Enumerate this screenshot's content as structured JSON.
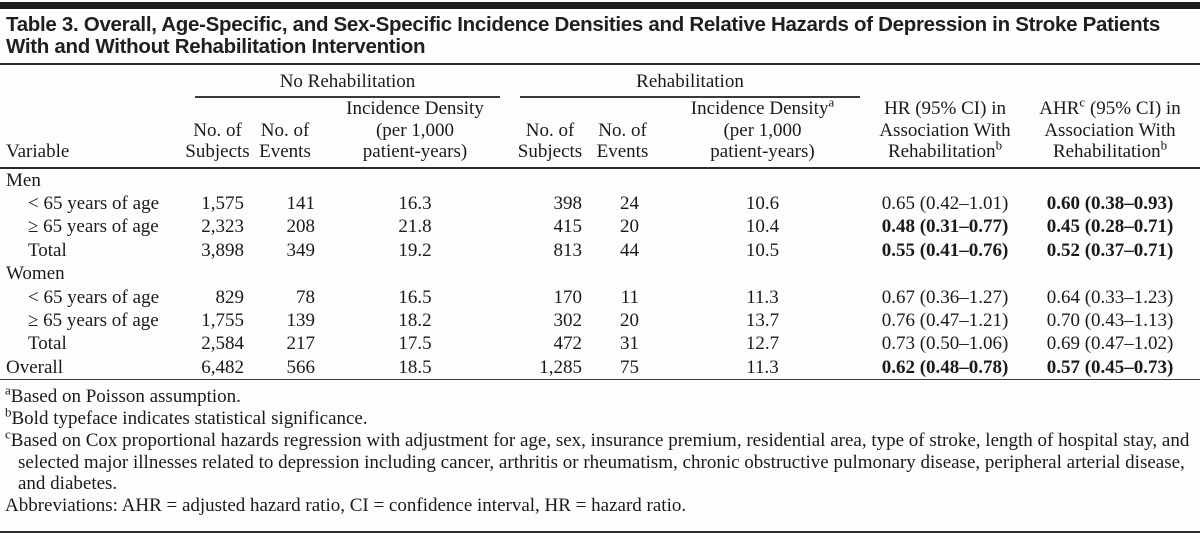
{
  "page": {
    "title": "Table 3. Overall, Age-Specific, and Sex-Specific Incidence Densities and Relative Hazards of Depression in Stroke Patients With and Without Rehabilitation Intervention"
  },
  "colors": {
    "top_bar": "#1c1c1c",
    "text": "#1a1a1a",
    "rule": "#2b2b2b",
    "background": "#fdfdfc"
  },
  "table": {
    "group_headers": [
      {
        "label": "No Rehabilitation",
        "span": 3
      },
      {
        "label": "Rehabilitation",
        "span": 3
      }
    ],
    "column_headers": [
      "Variable",
      "No. of\nSubjects",
      "No. of\nEvents",
      "Incidence Density\n(per 1,000\npatient-years)",
      "No. of\nSubjects",
      "No. of\nEvents",
      "Incidence Density^a\n(per 1,000\npatient-years)",
      "HR (95% CI) in\nAssociation With\nRehabilitation^b",
      "AHR^c (95% CI) in\nAssociation With\nRehabilitation^b"
    ],
    "rows": [
      {
        "label": "Men",
        "section": true
      },
      {
        "label": "< 65 years of age",
        "indent": true,
        "cells": [
          "1,575",
          "141",
          "16.3",
          "398",
          "24",
          "10.6",
          "0.65 (0.42–1.01)",
          "0.60 (0.38–0.93)"
        ],
        "bold": [
          7
        ]
      },
      {
        "label": "≥ 65 years of age",
        "indent": true,
        "cells": [
          "2,323",
          "208",
          "21.8",
          "415",
          "20",
          "10.4",
          "0.48 (0.31–0.77)",
          "0.45 (0.28–0.71)"
        ],
        "bold": [
          6,
          7
        ]
      },
      {
        "label": "Total",
        "indent": true,
        "cells": [
          "3,898",
          "349",
          "19.2",
          "813",
          "44",
          "10.5",
          "0.55 (0.41–0.76)",
          "0.52 (0.37–0.71)"
        ],
        "bold": [
          6,
          7
        ]
      },
      {
        "label": "Women",
        "section": true
      },
      {
        "label": "< 65 years of age",
        "indent": true,
        "cells": [
          "829",
          "78",
          "16.5",
          "170",
          "11",
          "11.3",
          "0.67 (0.36–1.27)",
          "0.64 (0.33–1.23)"
        ],
        "bold": []
      },
      {
        "label": "≥ 65 years of age",
        "indent": true,
        "cells": [
          "1,755",
          "139",
          "18.2",
          "302",
          "20",
          "13.7",
          "0.76 (0.47–1.21)",
          "0.70 (0.43–1.13)"
        ],
        "bold": []
      },
      {
        "label": "Total",
        "indent": true,
        "cells": [
          "2,584",
          "217",
          "17.5",
          "472",
          "31",
          "12.7",
          "0.73 (0.50–1.06)",
          "0.69 (0.47–1.02)"
        ],
        "bold": []
      },
      {
        "label": "Overall",
        "indent": false,
        "cells": [
          "6,482",
          "566",
          "18.5",
          "1,285",
          "75",
          "11.3",
          "0.62 (0.48–0.78)",
          "0.57 (0.45–0.73)"
        ],
        "bold": [
          6,
          7
        ]
      }
    ]
  },
  "footnotes": [
    "^aBased on Poisson assumption.",
    "^bBold typeface indicates statistical significance.",
    "^cBased on Cox proportional hazards regression with adjustment for age, sex, insurance premium, residential area, type of stroke, length of hospital stay, and selected major illnesses related to depression including cancer, arthritis or rheumatism, chronic obstructive pulmonary disease, peripheral arterial disease, and diabetes.",
    "Abbreviations: AHR = adjusted hazard ratio, CI = confidence interval, HR = hazard ratio."
  ]
}
